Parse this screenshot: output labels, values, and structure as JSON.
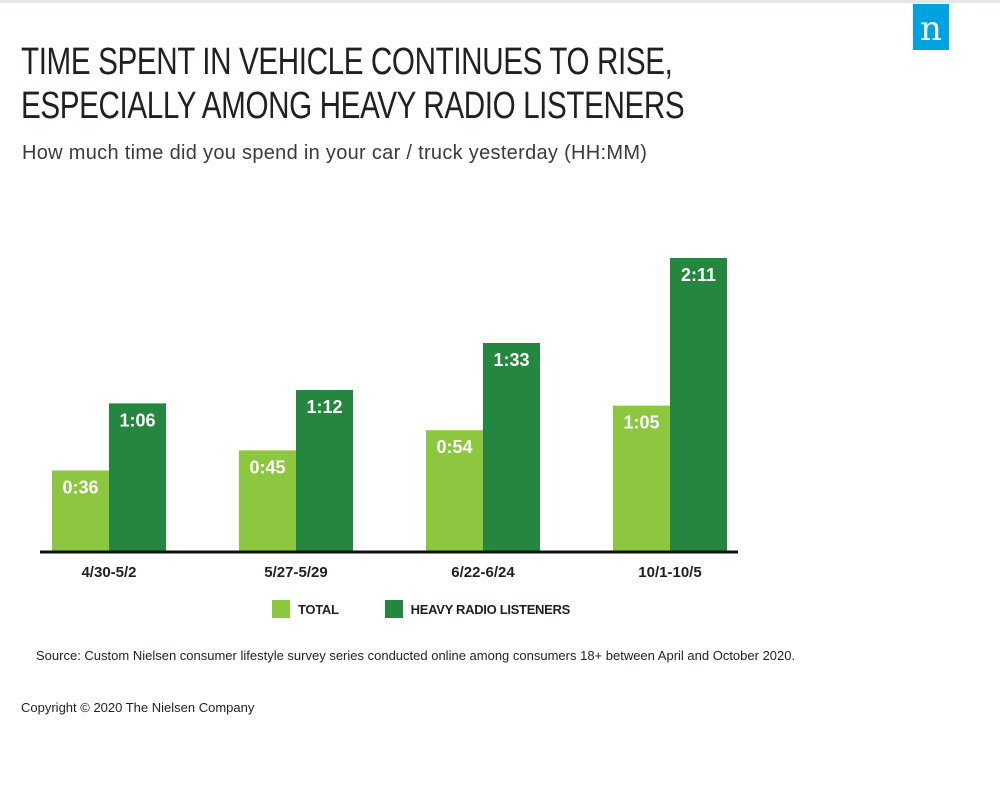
{
  "brand": {
    "logo_text": "n",
    "logo_color": "#00a3e0"
  },
  "header": {
    "title_line1": "TIME SPENT IN VEHICLE CONTINUES TO RISE,",
    "title_line2": "ESPECIALLY AMONG HEAVY RADIO LISTENERS",
    "subtitle": "How much time did you spend in your car / truck yesterday (HH:MM)"
  },
  "chart_data": {
    "type": "bar",
    "categories": [
      "4/30-5/2",
      "5/27-5/29",
      "6/22-6/24",
      "10/1-10/5"
    ],
    "series": [
      {
        "name": "TOTAL",
        "color": "#8dc63f",
        "values": [
          36,
          45,
          54,
          65
        ],
        "labels": [
          "0:36",
          "0:45",
          "0:54",
          "1:05"
        ]
      },
      {
        "name": "HEAVY RADIO LISTENERS",
        "color": "#25863f",
        "values": [
          66,
          72,
          93,
          131
        ],
        "labels": [
          "1:06",
          "1:12",
          "1:33",
          "2:11"
        ]
      }
    ],
    "title": "TIME SPENT IN VEHICLE CONTINUES TO RISE, ESPECIALLY AMONG HEAVY RADIO LISTENERS",
    "ylabel": "",
    "xlabel": "",
    "ylim": [
      0,
      131
    ],
    "grid": false,
    "legend_position": "bottom"
  },
  "footer": {
    "source": "Source: Custom Nielsen consumer lifestyle survey series conducted online among consumers 18+ between April and October 2020.",
    "copyright": "Copyright © 2020 The Nielsen Company"
  }
}
